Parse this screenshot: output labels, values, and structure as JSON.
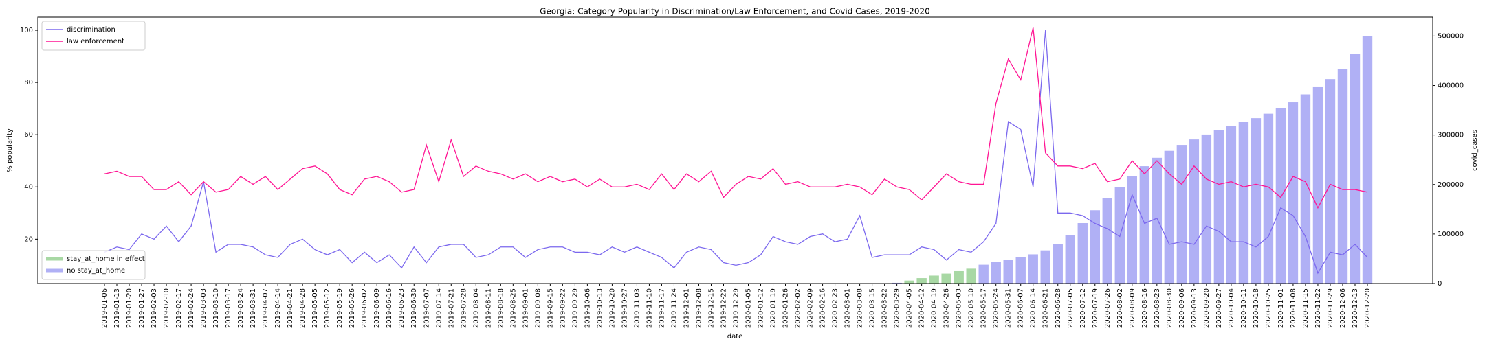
{
  "chart_data": {
    "type": "combo",
    "title": "Georgia: Category Popularity in Discrimination/Law Enforcement, and Covid Cases, 2019-2020",
    "x_label": "date",
    "y_label": "% popularity",
    "y2_label": "covid_cases",
    "categories": [
      "2019-01-06",
      "2019-01-13",
      "2019-01-20",
      "2019-01-27",
      "2019-02-03",
      "2019-02-10",
      "2019-02-17",
      "2019-02-24",
      "2019-03-03",
      "2019-03-10",
      "2019-03-17",
      "2019-03-24",
      "2019-03-31",
      "2019-04-07",
      "2019-04-14",
      "2019-04-21",
      "2019-04-28",
      "2019-05-05",
      "2019-05-12",
      "2019-05-19",
      "2019-05-26",
      "2019-06-02",
      "2019-06-09",
      "2019-06-16",
      "2019-06-23",
      "2019-06-30",
      "2019-07-07",
      "2019-07-14",
      "2019-07-21",
      "2019-07-28",
      "2019-08-04",
      "2019-08-11",
      "2019-08-18",
      "2019-08-25",
      "2019-09-01",
      "2019-09-08",
      "2019-09-15",
      "2019-09-22",
      "2019-09-29",
      "2019-10-06",
      "2019-10-13",
      "2019-10-20",
      "2019-10-27",
      "2019-11-03",
      "2019-11-10",
      "2019-11-17",
      "2019-11-24",
      "2019-12-01",
      "2019-12-08",
      "2019-12-15",
      "2019-12-22",
      "2019-12-29",
      "2020-01-05",
      "2020-01-12",
      "2020-01-19",
      "2020-01-26",
      "2020-02-02",
      "2020-02-09",
      "2020-02-16",
      "2020-02-23",
      "2020-03-01",
      "2020-03-08",
      "2020-03-15",
      "2020-03-22",
      "2020-03-29",
      "2020-04-05",
      "2020-04-12",
      "2020-04-19",
      "2020-04-26",
      "2020-05-03",
      "2020-05-10",
      "2020-05-17",
      "2020-05-24",
      "2020-05-31",
      "2020-06-07",
      "2020-06-14",
      "2020-06-21",
      "2020-06-28",
      "2020-07-05",
      "2020-07-12",
      "2020-07-19",
      "2020-07-26",
      "2020-08-02",
      "2020-08-09",
      "2020-08-16",
      "2020-08-23",
      "2020-08-30",
      "2020-09-06",
      "2020-09-13",
      "2020-09-20",
      "2020-09-27",
      "2020-10-04",
      "2020-10-11",
      "2020-10-18",
      "2020-10-25",
      "2020-11-01",
      "2020-11-08",
      "2020-11-15",
      "2020-11-22",
      "2020-11-29",
      "2020-12-06",
      "2020-12-13",
      "2020-12-20"
    ],
    "series": [
      {
        "name": "discrimination",
        "kind": "line",
        "color": "#7b68ee",
        "values": [
          15,
          17,
          16,
          22,
          20,
          25,
          19,
          25,
          42,
          15,
          18,
          18,
          17,
          14,
          13,
          18,
          20,
          16,
          14,
          16,
          11,
          15,
          11,
          14,
          9,
          17,
          11,
          17,
          18,
          18,
          13,
          14,
          17,
          17,
          13,
          16,
          17,
          17,
          15,
          15,
          14,
          17,
          15,
          17,
          15,
          13,
          9,
          15,
          17,
          16,
          11,
          10,
          11,
          14,
          21,
          19,
          18,
          21,
          22,
          19,
          20,
          29,
          13,
          14,
          14,
          14,
          17,
          16,
          12,
          16,
          15,
          19,
          26,
          65,
          62,
          40,
          100,
          30,
          30,
          29,
          26,
          24,
          21,
          37,
          26,
          28,
          18,
          19,
          18,
          25,
          23,
          19,
          19,
          17,
          21,
          32,
          29,
          21,
          7,
          15,
          14,
          18,
          13
        ]
      },
      {
        "name": "law enforcement",
        "kind": "line",
        "color": "#ff1493",
        "values": [
          45,
          46,
          44,
          44,
          39,
          39,
          42,
          37,
          42,
          38,
          39,
          44,
          41,
          44,
          39,
          43,
          47,
          48,
          45,
          39,
          37,
          43,
          44,
          42,
          38,
          39,
          56,
          42,
          58,
          44,
          48,
          46,
          45,
          43,
          45,
          42,
          44,
          42,
          43,
          40,
          43,
          40,
          40,
          41,
          39,
          45,
          39,
          45,
          42,
          46,
          36,
          41,
          44,
          43,
          47,
          41,
          42,
          40,
          40,
          40,
          41,
          40,
          37,
          43,
          40,
          39,
          35,
          40,
          45,
          42,
          41,
          41,
          72,
          89,
          81,
          101,
          53,
          48,
          48,
          47,
          49,
          42,
          43,
          50,
          45,
          50,
          45,
          41,
          48,
          43,
          41,
          42,
          40,
          41,
          40,
          36,
          44,
          42,
          32,
          41,
          39,
          39,
          38
        ]
      },
      {
        "name": "stay_at_home in effect",
        "kind": "bar",
        "axis": "y2",
        "color": "#a8d8a4",
        "values": [
          null,
          null,
          null,
          null,
          null,
          null,
          null,
          null,
          null,
          null,
          null,
          null,
          null,
          null,
          null,
          null,
          null,
          null,
          null,
          null,
          null,
          null,
          null,
          null,
          null,
          null,
          null,
          null,
          null,
          null,
          null,
          null,
          null,
          null,
          null,
          null,
          null,
          null,
          null,
          null,
          null,
          null,
          null,
          null,
          null,
          null,
          null,
          null,
          null,
          null,
          null,
          null,
          null,
          null,
          null,
          null,
          null,
          null,
          null,
          null,
          null,
          null,
          null,
          null,
          null,
          6000,
          11000,
          16000,
          20000,
          25000,
          30000,
          null,
          null,
          null,
          null,
          null,
          null,
          null,
          null,
          null,
          null,
          null,
          null,
          null,
          null,
          null,
          null,
          null,
          null,
          null,
          null,
          null,
          null,
          null,
          null,
          null,
          null,
          null,
          null,
          null,
          null,
          null,
          null
        ]
      },
      {
        "name": "no stay_at_home",
        "kind": "bar",
        "axis": "y2",
        "color": "#b0b0f5",
        "values": [
          null,
          null,
          null,
          null,
          null,
          null,
          null,
          null,
          null,
          null,
          null,
          null,
          null,
          null,
          null,
          null,
          null,
          null,
          null,
          null,
          null,
          null,
          null,
          null,
          null,
          null,
          null,
          null,
          null,
          null,
          null,
          null,
          null,
          null,
          null,
          null,
          null,
          null,
          null,
          null,
          null,
          null,
          null,
          null,
          null,
          null,
          null,
          null,
          null,
          null,
          null,
          null,
          null,
          null,
          null,
          null,
          null,
          null,
          null,
          null,
          null,
          null,
          null,
          null,
          1500,
          null,
          null,
          null,
          null,
          null,
          null,
          38000,
          44000,
          48000,
          53000,
          59000,
          67000,
          80000,
          98000,
          122000,
          148000,
          172000,
          195000,
          217000,
          237000,
          254000,
          268000,
          280000,
          291000,
          301000,
          310000,
          318000,
          326000,
          334000,
          343000,
          354000,
          366000,
          382000,
          398000,
          413000,
          434000,
          464000,
          500000
        ]
      }
    ],
    "ylim": [
      3,
      105
    ],
    "yticks": [
      20,
      40,
      60,
      80,
      100
    ],
    "y2lim": [
      0,
      538000
    ],
    "y2ticks": [
      0,
      100000,
      200000,
      300000,
      400000,
      500000
    ],
    "legend": "upper left",
    "bar_legend": "lower left",
    "grid": false
  }
}
